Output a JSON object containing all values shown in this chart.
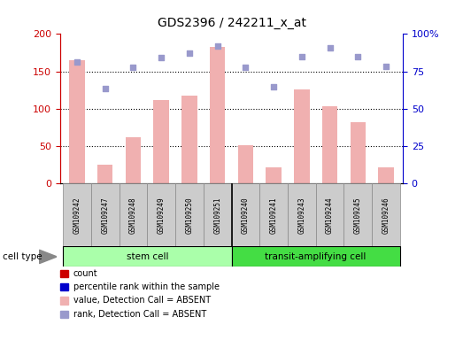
{
  "title": "GDS2396 / 242211_x_at",
  "samples": [
    "GSM109242",
    "GSM109247",
    "GSM109248",
    "GSM109249",
    "GSM109250",
    "GSM109251",
    "GSM109240",
    "GSM109241",
    "GSM109243",
    "GSM109244",
    "GSM109245",
    "GSM109246"
  ],
  "bar_values": [
    165,
    25,
    62,
    112,
    118,
    183,
    51,
    22,
    126,
    103,
    82,
    22
  ],
  "scatter_values": [
    163,
    127,
    156,
    168,
    174,
    184,
    155,
    129,
    170,
    181,
    170,
    157
  ],
  "stem_cell_count": 6,
  "transit_cell_count": 6,
  "cell_type_labels": [
    "stem cell",
    "transit-amplifying cell"
  ],
  "ylim": [
    0,
    200
  ],
  "yticks_left": [
    0,
    50,
    100,
    150,
    200
  ],
  "yticks_right_labels": [
    "0",
    "25",
    "50",
    "75",
    "100%"
  ],
  "bar_color": "#f0b0b0",
  "scatter_color": "#9999cc",
  "cell_type_stem_color": "#aaffaa",
  "cell_type_transit_color": "#44dd44",
  "left_tick_color": "#cc0000",
  "right_tick_color": "#0000cc",
  "legend_items": [
    {
      "color": "#cc0000",
      "label": "count"
    },
    {
      "color": "#0000cc",
      "label": "percentile rank within the sample"
    },
    {
      "color": "#f0b0b0",
      "label": "value, Detection Call = ABSENT"
    },
    {
      "color": "#9999cc",
      "label": "rank, Detection Call = ABSENT"
    }
  ],
  "dotted_line_values": [
    50,
    100,
    150
  ],
  "sample_bg_color": "#cccccc",
  "sample_border_color": "#888888"
}
